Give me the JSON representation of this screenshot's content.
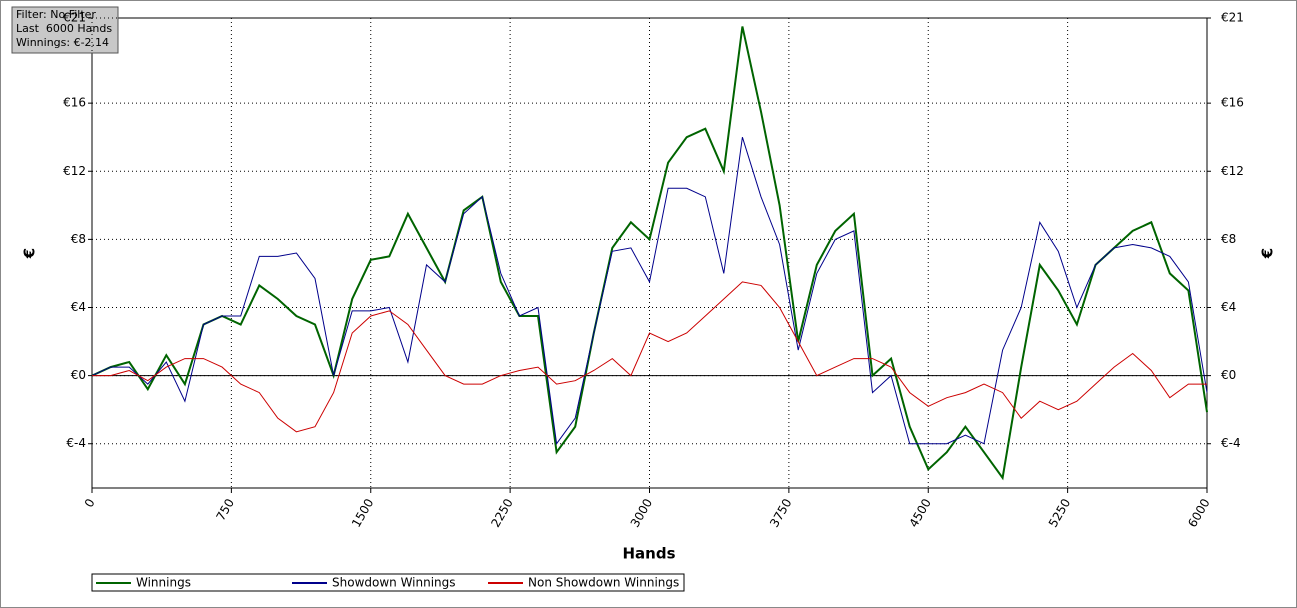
{
  "info": {
    "filter": "Filter: No Filter",
    "hands": "Last  6000 Hands",
    "winnings": "Winnings: €-2.14"
  },
  "chart_data": {
    "type": "line",
    "xlabel": "Hands",
    "ylabel": "€",
    "x": [
      0,
      100,
      200,
      300,
      400,
      500,
      600,
      700,
      800,
      900,
      1000,
      1100,
      1200,
      1300,
      1400,
      1500,
      1600,
      1700,
      1800,
      1900,
      2000,
      2100,
      2200,
      2300,
      2400,
      2500,
      2600,
      2700,
      2800,
      2900,
      3000,
      3100,
      3200,
      3300,
      3400,
      3500,
      3600,
      3700,
      3800,
      3900,
      4000,
      4100,
      4200,
      4300,
      4400,
      4500,
      4600,
      4700,
      4800,
      4900,
      5000,
      5100,
      5200,
      5300,
      5400,
      5500,
      5600,
      5700,
      5800,
      5900,
      6000
    ],
    "series": [
      {
        "name": "Winnings",
        "color": "#006400",
        "values": [
          0,
          0.5,
          0.8,
          -0.8,
          1.2,
          -0.5,
          3,
          3.5,
          3,
          5.3,
          4.5,
          3.5,
          3,
          0,
          4.5,
          6.8,
          7,
          9.5,
          7.5,
          5.5,
          9.7,
          10.5,
          5.5,
          3.5,
          3.5,
          -4.5,
          -3,
          2.5,
          7.5,
          9,
          8,
          12.5,
          14,
          14.5,
          12,
          20.5,
          15.5,
          10,
          2,
          6.5,
          8.5,
          9.5,
          0,
          1,
          -3,
          -5.5,
          -4.5,
          -3,
          -4.5,
          -6,
          0.5,
          6.5,
          5,
          3,
          6.5,
          7.5,
          8.5,
          9,
          6,
          5,
          -2.14
        ]
      },
      {
        "name": "Showdown Winnings",
        "color": "#00008b",
        "values": [
          0,
          0.5,
          0.5,
          -0.5,
          0.8,
          -1.5,
          3,
          3.5,
          3.5,
          7,
          7,
          7.2,
          5.7,
          0,
          3.8,
          3.8,
          4,
          0.8,
          6.5,
          5.5,
          9.5,
          10.5,
          6,
          3.5,
          4,
          -4,
          -2.5,
          2.5,
          7.3,
          7.5,
          5.5,
          11,
          11,
          10.5,
          6,
          14,
          10.5,
          7.7,
          1.5,
          6,
          8,
          8.5,
          -1,
          0,
          -4,
          -4,
          -4,
          -3.5,
          -4,
          1.5,
          4,
          9,
          7.3,
          4,
          6.5,
          7.5,
          7.7,
          7.5,
          7,
          5.5,
          -1
        ]
      },
      {
        "name": "Non Showdown Winnings",
        "color": "#cc0000",
        "values": [
          0,
          0,
          0.3,
          -0.3,
          0.5,
          1,
          1,
          0.5,
          -0.5,
          -1,
          -2.5,
          -3.3,
          -3,
          -1,
          2.5,
          3.5,
          3.8,
          3,
          1.5,
          0,
          -0.5,
          -0.5,
          0,
          0.3,
          0.5,
          -0.5,
          -0.3,
          0.3,
          1,
          0,
          2.5,
          2,
          2.5,
          3.5,
          4.5,
          5.5,
          5.3,
          4,
          2,
          0,
          0.5,
          1,
          1,
          0.5,
          -1,
          -1.8,
          -1.3,
          -1,
          -0.5,
          -1,
          -2.5,
          -1.5,
          -2,
          -1.5,
          -0.5,
          0.5,
          1.3,
          0.3,
          -1.3,
          -0.5,
          -0.5
        ]
      }
    ],
    "xlim": [
      0,
      6000
    ],
    "xticks": [
      0,
      750,
      1500,
      2250,
      3000,
      3750,
      4500,
      5250,
      6000
    ],
    "ylim": [
      -6.6,
      21
    ],
    "yticks": [
      {
        "value": -4,
        "label": "€-4"
      },
      {
        "value": 0,
        "label": "€0"
      },
      {
        "value": 4,
        "label": "€4"
      },
      {
        "value": 8,
        "label": "€8"
      },
      {
        "value": 12,
        "label": "€12"
      },
      {
        "value": 16,
        "label": "€16"
      },
      {
        "value": 21,
        "label": "€21"
      }
    ],
    "grid": true,
    "legend": "bottom"
  }
}
